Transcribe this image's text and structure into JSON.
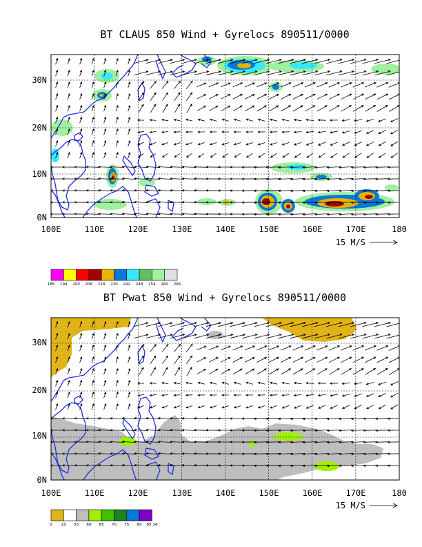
{
  "panels": [
    {
      "title": "BT CLAUS 850 Wind + Gyrelocs 890511/0000",
      "lat_labels": [
        "30N",
        "20N",
        "10N",
        "0N"
      ],
      "lon_labels": [
        "100E",
        "110E",
        "120E",
        "130E",
        "140E",
        "150E",
        "160E",
        "170E",
        "180"
      ],
      "ref_vector_label": "15 M/S",
      "colorbar": {
        "colors": [
          "#ff00ff",
          "#ffff00",
          "#ff0000",
          "#a00000",
          "#e8b400",
          "#0a78d8",
          "#38e8ff",
          "#60c060",
          "#a0f0a0",
          "#e0e0e0"
        ],
        "labels": [
          "188",
          "194",
          "200",
          "206",
          "218",
          "230",
          "242",
          "248",
          "254",
          "260",
          "266"
        ]
      }
    },
    {
      "title": "BT Pwat 850 Wind + Gyrelocs 890511/0000",
      "lat_labels": [
        "30N",
        "20N",
        "10N",
        "0N"
      ],
      "lon_labels": [
        "100E",
        "110E",
        "120E",
        "130E",
        "140E",
        "150E",
        "160E",
        "170E",
        "180"
      ],
      "ref_vector_label": "15 M/S",
      "colorbar": {
        "colors": [
          "#e0b418",
          "#ffffff",
          "#bebebe",
          "#a0f000",
          "#40c000",
          "#208020",
          "#0a78d8",
          "#8000c8"
        ],
        "labels": [
          "0",
          "25",
          "55",
          "60",
          "65",
          "70",
          "75",
          "80",
          "85.34"
        ]
      }
    }
  ]
}
